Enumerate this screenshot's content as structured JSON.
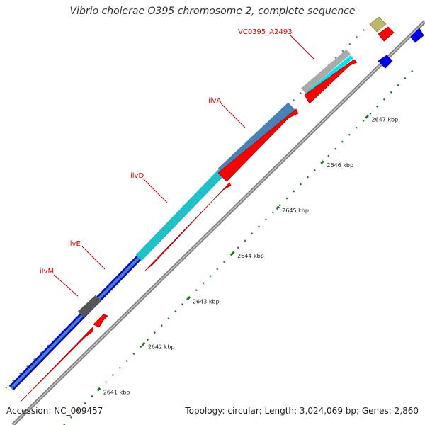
{
  "title": "Vibrio cholerae O395 chromosome 2, complete sequence",
  "footer": {
    "accession": "Accession: NC_009457",
    "summary": "Topology: circular; Length: 3,024,069 bp; Genes: 2,860"
  },
  "gene_labels": [
    "VC0395_A2493",
    "ilvA",
    "ilvD",
    "ilvE",
    "ilvM"
  ],
  "scale_ticks": [
    "2641 kbp",
    "2642 kbp",
    "2643 kbp",
    "2644 kbp",
    "2645 kbp",
    "2646 kbp",
    "2647 kbp"
  ],
  "colors": {
    "backbone": "#808080",
    "cds_forward": "#ff0000",
    "feature_blue": "#0000dd",
    "feature_steel": "#4682b4",
    "feature_cyan": "#20c0c8",
    "feature_gray": "#555555",
    "feature_light": "#aaaaaa",
    "feature_khaki": "#bdb76b",
    "feature_label": "#dd0000",
    "tick_green": "#1a7a1a"
  }
}
